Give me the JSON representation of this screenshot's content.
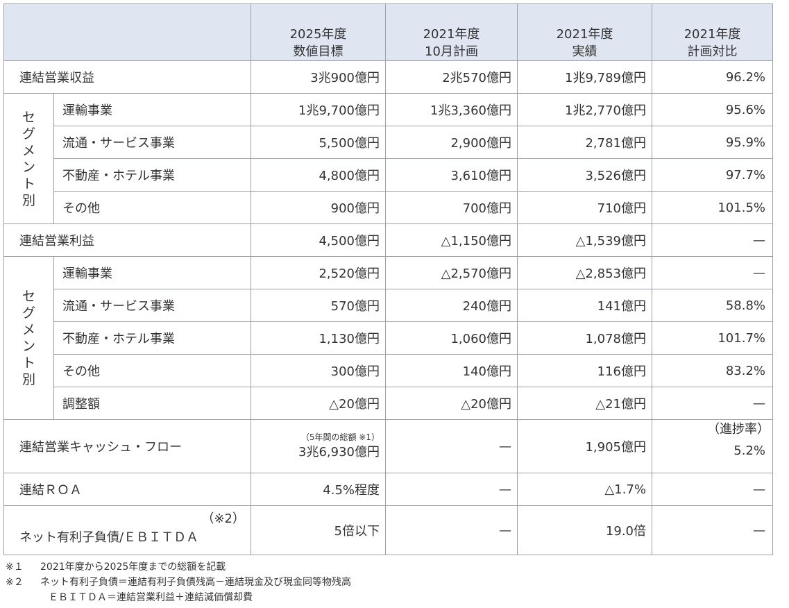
{
  "header": {
    "col1": [
      "2025年度",
      "数値目標"
    ],
    "col2": [
      "2021年度",
      "10月計画"
    ],
    "col3": [
      "2021年度",
      "実績"
    ],
    "col4": [
      "2021年度",
      "計画対比"
    ]
  },
  "segment_label": "セグメント別",
  "revenue": {
    "label": "連結営業収益",
    "values": [
      "3兆900億円",
      "2兆570億円",
      "1兆9,789億円",
      "96.2%"
    ],
    "segments": [
      {
        "label": "運輸事業",
        "values": [
          "1兆9,700億円",
          "1兆3,360億円",
          "1兆2,770億円",
          "95.6%"
        ]
      },
      {
        "label": "流通・サービス事業",
        "values": [
          "5,500億円",
          "2,900億円",
          "2,781億円",
          "95.9%"
        ]
      },
      {
        "label": "不動産・ホテル事業",
        "values": [
          "4,800億円",
          "3,610億円",
          "3,526億円",
          "97.7%"
        ]
      },
      {
        "label": "その他",
        "values": [
          "900億円",
          "700億円",
          "710億円",
          "101.5%"
        ]
      }
    ]
  },
  "profit": {
    "label": "連結営業利益",
    "values": [
      "4,500億円",
      "△1,150億円",
      "△1,539億円",
      "—"
    ],
    "segments": [
      {
        "label": "運輸事業",
        "values": [
          "2,520億円",
          "△2,570億円",
          "△2,853億円",
          "—"
        ]
      },
      {
        "label": "流通・サービス事業",
        "values": [
          "570億円",
          "240億円",
          "141億円",
          "58.8%"
        ]
      },
      {
        "label": "不動産・ホテル事業",
        "values": [
          "1,130億円",
          "1,060億円",
          "1,078億円",
          "101.7%"
        ]
      },
      {
        "label": "その他",
        "values": [
          "300億円",
          "140億円",
          "116億円",
          "83.2%"
        ]
      },
      {
        "label": "調整額",
        "values": [
          "△20億円",
          "△20億円",
          "△21億円",
          "—"
        ]
      }
    ]
  },
  "cashflow": {
    "label": "連結営業キャッシュ・フロー",
    "target_note": "（5年間の総額 ※1）",
    "target": "3兆6,930億円",
    "plan": "—",
    "actual": "1,905億円",
    "progress_label": "（進捗率）",
    "progress": "5.2%"
  },
  "roa": {
    "label": "連結ＲＯＡ",
    "values": [
      "4.5%程度",
      "—",
      "△1.7%",
      "—"
    ]
  },
  "netdebt": {
    "note": "（※2）",
    "label": "ネット有利子負債/ＥＢＩＴＤＡ",
    "values": [
      "5倍以下",
      "—",
      "19.0倍",
      "—"
    ]
  },
  "footnotes": {
    "n1_mark": "※１",
    "n1_text": "2021年度から2025年度までの総額を記載",
    "n2_mark": "※２",
    "n2_text": "ネット有利子負債＝連結有利子負債残高－連結現金及び現金同等物残高",
    "n2_text2": "ＥＢＩＴＤＡ＝連結営業利益＋連結減価償却費"
  }
}
